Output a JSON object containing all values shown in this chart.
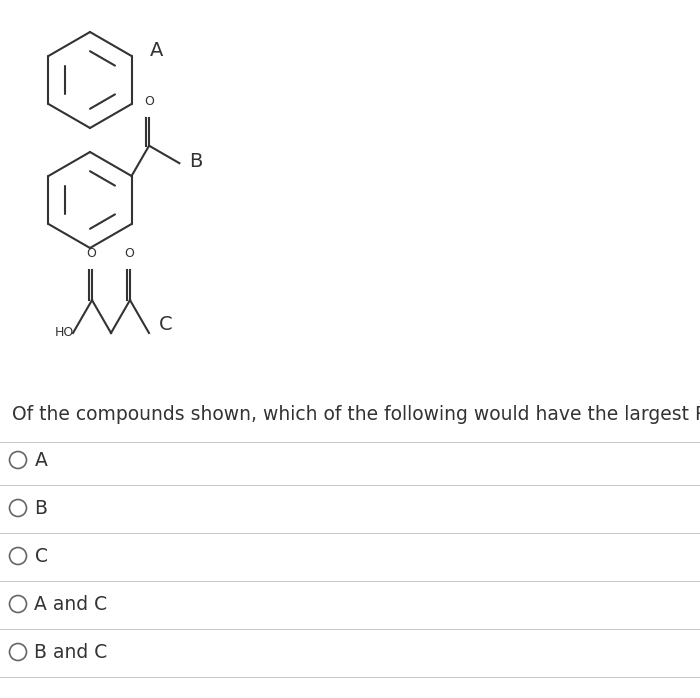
{
  "question": "Of the compounds shown, which of the following would have the largest Rf value?",
  "options": [
    "A",
    "B",
    "C",
    "A and C",
    "B and C"
  ],
  "background_color": "#ffffff",
  "text_color": "#333333",
  "line_color": "#333333",
  "option_line_color": "#cccccc",
  "circle_color": "#666666",
  "font_size_question": 13.5,
  "font_size_options": 13.5,
  "label_font_size": 14
}
